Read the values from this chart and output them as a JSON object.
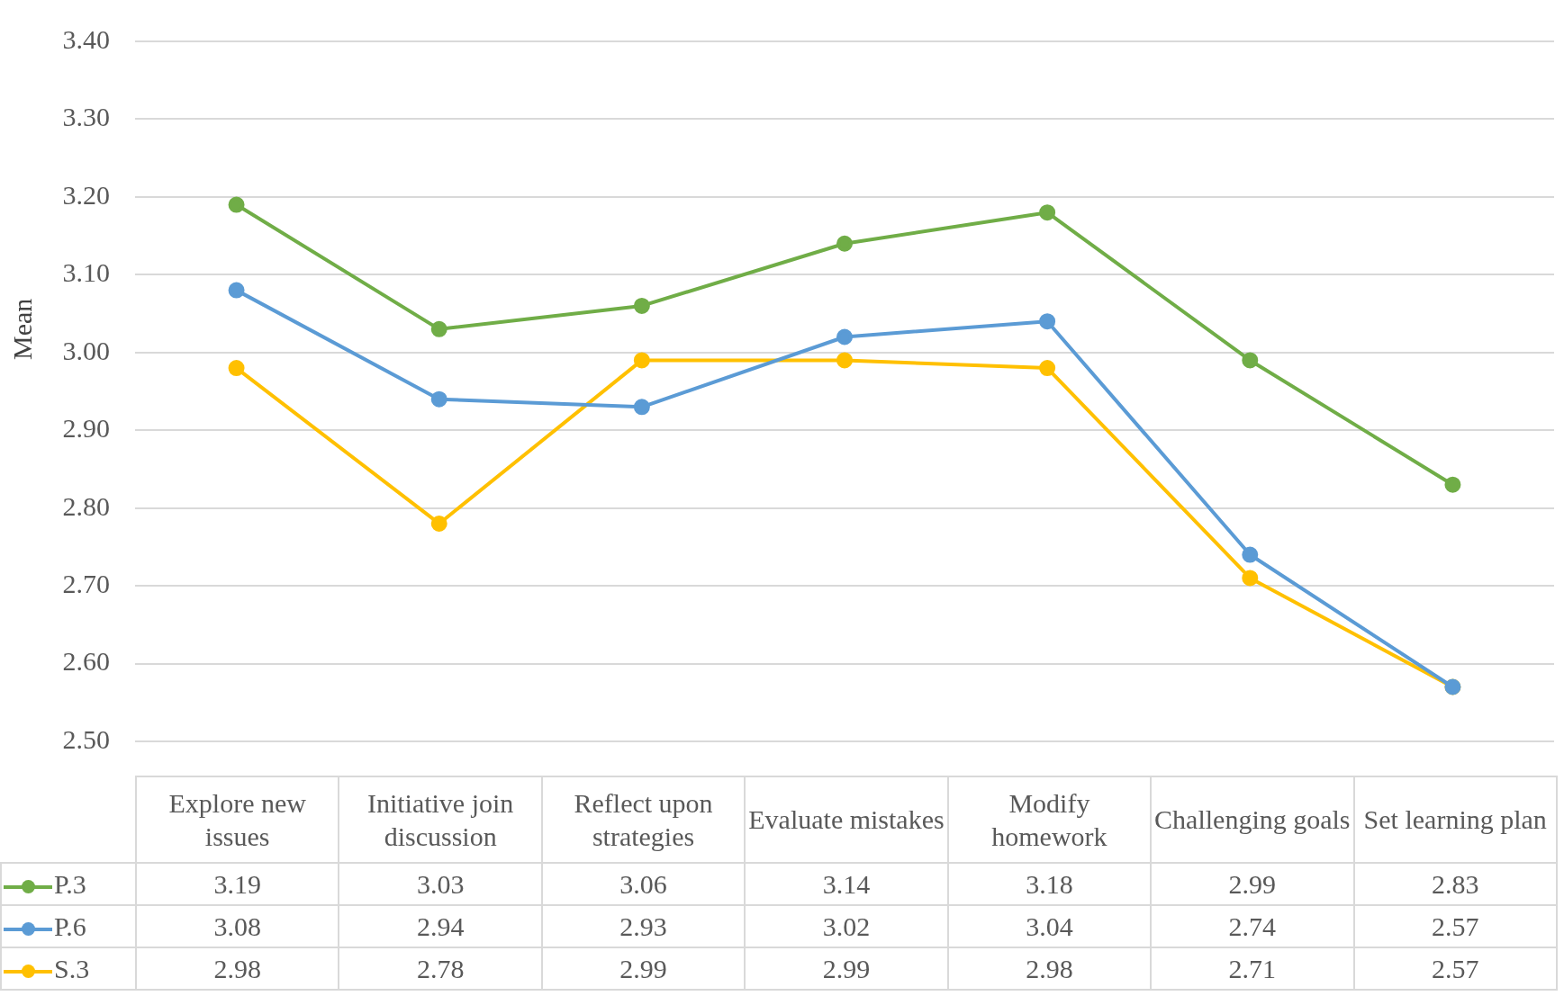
{
  "chart_data": {
    "type": "line",
    "ylabel": "Mean",
    "categories": [
      "Explore new issues",
      "Initiative join discussion",
      "Reflect upon strategies",
      "Evaluate mistakes",
      "Modify homework",
      "Challenging goals",
      "Set learning plan"
    ],
    "series": [
      {
        "name": "P.3",
        "color": "#70ad47",
        "values": [
          3.19,
          3.03,
          3.06,
          3.14,
          3.18,
          2.99,
          2.83
        ]
      },
      {
        "name": "P.6",
        "color": "#5b9bd5",
        "values": [
          3.08,
          2.94,
          2.93,
          3.02,
          3.04,
          2.74,
          2.57
        ]
      },
      {
        "name": "S.3",
        "color": "#ffc000",
        "values": [
          2.98,
          2.78,
          2.99,
          2.99,
          2.98,
          2.71,
          2.57
        ]
      }
    ],
    "ylim": [
      2.5,
      3.4
    ],
    "yticks": [
      {
        "value": 2.5,
        "label": "2.50"
      },
      {
        "value": 2.6,
        "label": "2.60"
      },
      {
        "value": 2.7,
        "label": "2.70"
      },
      {
        "value": 2.8,
        "label": "2.80"
      },
      {
        "value": 2.9,
        "label": "2.90"
      },
      {
        "value": 3.0,
        "label": "3.00"
      },
      {
        "value": 3.1,
        "label": "3.10"
      },
      {
        "value": 3.2,
        "label": "3.20"
      },
      {
        "value": 3.3,
        "label": "3.30"
      },
      {
        "value": 3.4,
        "label": "3.40"
      }
    ],
    "grid": "y",
    "marker": "circle",
    "line_style": "solid",
    "legend": "bottom",
    "data_labels": true
  }
}
